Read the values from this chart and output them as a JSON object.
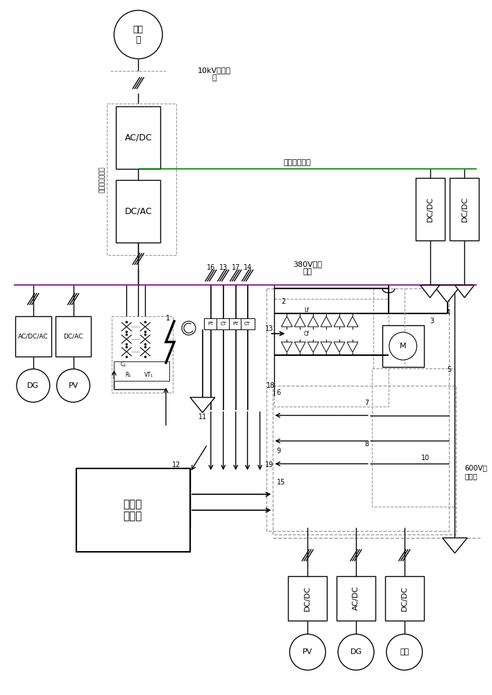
{
  "bg_color": "#ffffff",
  "line_color": "#000000",
  "green_bus_color": "#008000",
  "purple_bus_color": "#800080",
  "gray_color": "#999999",
  "figsize": [
    7.09,
    10.0
  ],
  "dpi": 100,
  "labels": {
    "grid": "配电\n网",
    "ac_bus_10kv": "10kV交流母\n线",
    "acdc_box": "AC/DC",
    "dcac_box": "DC/AC",
    "high_dc_bus": "高压直流母线",
    "dc_box_r1": "DC/DC",
    "dc_box_r2": "DC/DC",
    "ac_bus_380v": "380V交流\n母线",
    "acdc_ac_box": "AC/DC/AC",
    "dcac_box2": "DC/AC",
    "dg_left": "DG",
    "pv_left": "PV",
    "central_unit": "中央监\n控单元",
    "dc_bus_600v": "600V直\n流母线",
    "dc_box_b1": "DC/DC",
    "acdc_box_b": "AC/DC",
    "dc_box_b2": "DC/DC",
    "pv_bottom": "PV",
    "dg_bottom": "DG",
    "storage_bottom": "储能",
    "vert_label": "电力电子变压器"
  }
}
